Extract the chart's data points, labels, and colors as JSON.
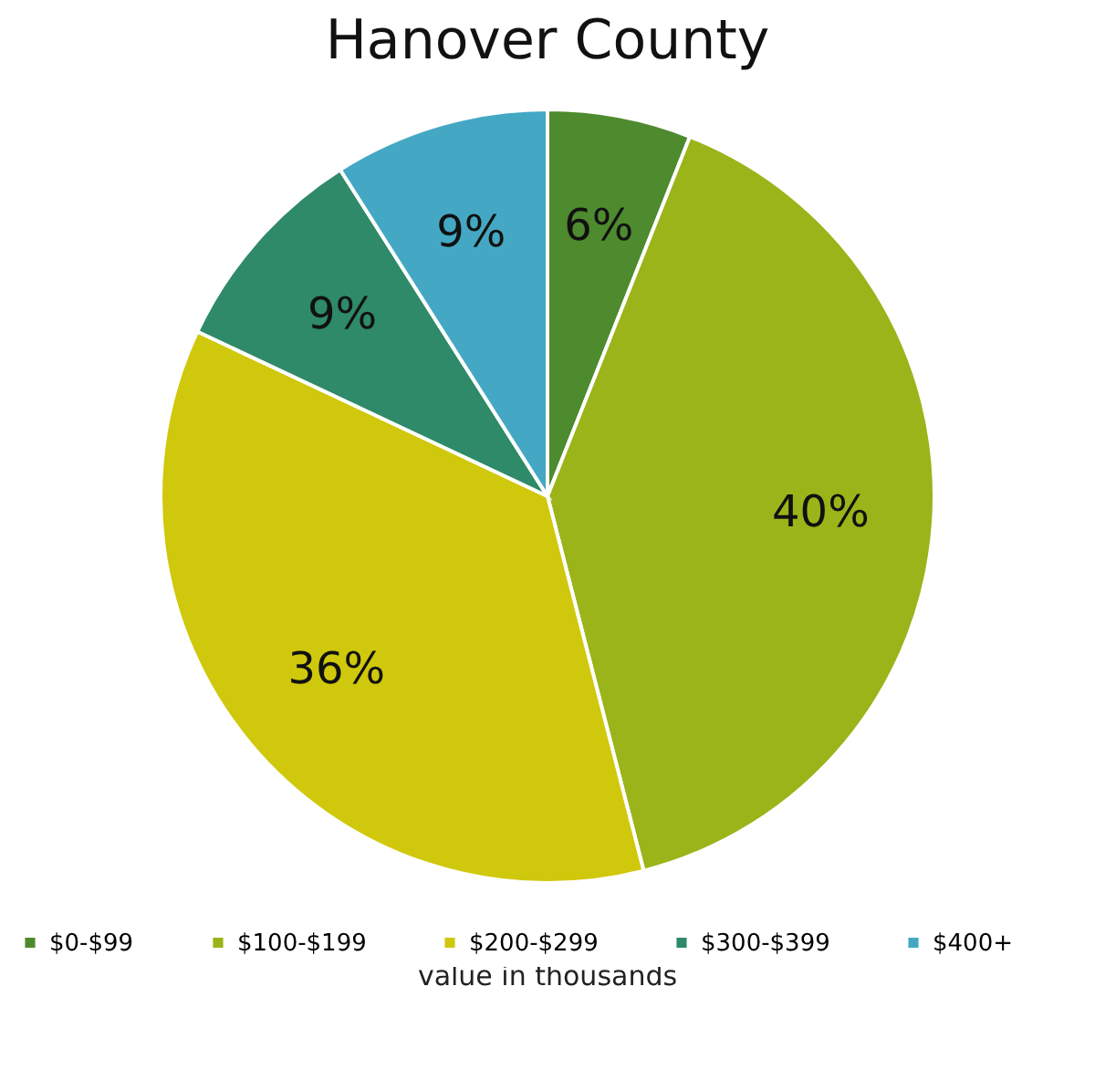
{
  "chart_data": {
    "type": "pie",
    "title": "Hanover County",
    "categories": [
      "$0-$99",
      "$100-$199",
      "$200-$299",
      "$300-$399",
      "$400+"
    ],
    "values": [
      6,
      40,
      36,
      9,
      9
    ],
    "value_labels": [
      "6%",
      "40%",
      "36%",
      "9%",
      "9%"
    ],
    "colors": [
      "#4e8a2e",
      "#9ab41a",
      "#d0c80c",
      "#2e8a68",
      "#44a8c4"
    ],
    "legend": "bottom",
    "annotations": [
      "value in thousands"
    ]
  }
}
